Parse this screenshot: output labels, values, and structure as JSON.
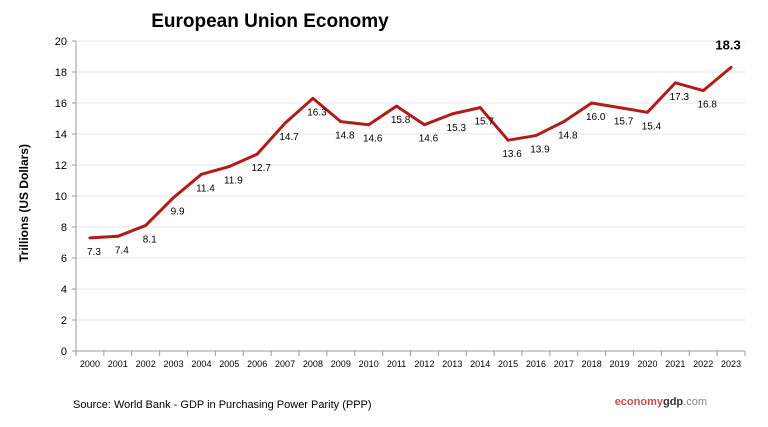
{
  "chart_data": {
    "type": "line",
    "title": "European Union Economy",
    "xlabel": "",
    "ylabel": "Trillions (US Dollars)",
    "ylim": [
      0,
      20
    ],
    "yticks": [
      0,
      2,
      4,
      6,
      8,
      10,
      12,
      14,
      16,
      18,
      20
    ],
    "grid": true,
    "categories": [
      "2000",
      "2001",
      "2002",
      "2003",
      "2004",
      "2005",
      "2006",
      "2007",
      "2008",
      "2009",
      "2010",
      "2011",
      "2012",
      "2013",
      "2014",
      "2015",
      "2016",
      "2017",
      "2018",
      "2019",
      "2020",
      "2021",
      "2022",
      "2023"
    ],
    "values": [
      7.3,
      7.4,
      8.1,
      9.9,
      11.4,
      11.9,
      12.7,
      14.7,
      16.3,
      14.8,
      14.6,
      15.8,
      14.6,
      15.3,
      15.7,
      13.6,
      13.9,
      14.8,
      16.0,
      15.7,
      15.4,
      17.3,
      16.8,
      18.3
    ],
    "data_labels": [
      "7.3",
      "7.4",
      "8.1",
      "9.9",
      "11.4",
      "11.9",
      "12.7",
      "14.7",
      "16.3",
      "14.8",
      "14.6",
      "15.8",
      "14.6",
      "15.3",
      "15.7",
      "13.6",
      "13.9",
      "14.8",
      "16.0",
      "15.7",
      "15.4",
      "17.3",
      "16.8",
      "18.3"
    ],
    "line_color": "#b01c1c"
  },
  "source": "Source:  World Bank -  GDP  in Purchasing Power Parity (PPP)",
  "logo": {
    "part1": "economy",
    "part2": "gdp",
    "part3": ".com",
    "color1": "#c0504d",
    "color2": "#333333",
    "color3": "#888888"
  }
}
